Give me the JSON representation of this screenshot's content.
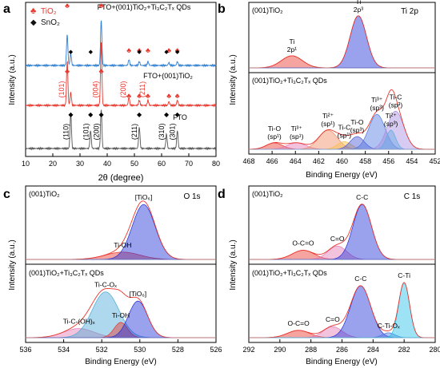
{
  "figure": {
    "panels": [
      {
        "letter": "a",
        "legend": [
          {
            "symbol": "♣",
            "label": "TiO₂",
            "color": "#e8362c"
          },
          {
            "symbol": "◆",
            "label": "SnO₂",
            "color": "#111111"
          }
        ],
        "xlabel": "2θ (degree)",
        "ylabel": "Intensity (a.u.)"
      },
      {
        "letter": "b",
        "title": "Ti 2p",
        "xlabel": "Binding Energy (eV)",
        "ylabel": "Intensity (a.u.)"
      },
      {
        "letter": "c",
        "title": "O 1s",
        "xlabel": "Binding Energy (eV)",
        "ylabel": "Intensity (a.u.)"
      },
      {
        "letter": "d",
        "title": "C 1s",
        "xlabel": "Binding Energy (eV)",
        "ylabel": "Intensity (a.u.)"
      }
    ]
  },
  "chart_data": [
    {
      "type": "line",
      "panel": "a",
      "xlabel": "2θ (degree)",
      "ylabel": "Intensity (a.u.)",
      "xlim": [
        10,
        80
      ],
      "xticks": [
        "10",
        "20",
        "30",
        "40",
        "50",
        "60",
        "70",
        "80"
      ],
      "y_ticks_shown": false,
      "series": [
        {
          "name": "FTO+(001)TiO₂+Ti₃C₂Tₓ QDs",
          "color": "#2f7fd1",
          "peaks": [
            {
              "x": 25.3,
              "h": 0.65
            },
            {
              "x": 26.6,
              "h": 0.25
            },
            {
              "x": 37.8,
              "h": 0.95
            },
            {
              "x": 48.0,
              "h": 0.12
            },
            {
              "x": 51.8,
              "h": 0.08
            },
            {
              "x": 55.0,
              "h": 0.08
            },
            {
              "x": 62.7,
              "h": 0.06
            },
            {
              "x": 65.8,
              "h": 0.08
            }
          ]
        },
        {
          "name": "FTO+(001)TiO₂",
          "color": "#e8362c",
          "peaks": [
            {
              "x": 25.3,
              "h": 0.7
            },
            {
              "x": 26.6,
              "h": 0.2
            },
            {
              "x": 37.8,
              "h": 1.0
            },
            {
              "x": 48.0,
              "h": 0.12
            },
            {
              "x": 51.8,
              "h": 0.08
            },
            {
              "x": 55.0,
              "h": 0.08
            },
            {
              "x": 62.7,
              "h": 0.06
            },
            {
              "x": 65.8,
              "h": 0.08
            }
          ]
        },
        {
          "name": "FTO",
          "color": "#555555",
          "peaks": [
            {
              "x": 26.6,
              "h": 0.5
            },
            {
              "x": 33.9,
              "h": 0.25
            },
            {
              "x": 37.8,
              "h": 0.55
            },
            {
              "x": 51.8,
              "h": 0.3
            },
            {
              "x": 61.8,
              "h": 0.2
            },
            {
              "x": 65.8,
              "h": 0.25
            }
          ]
        }
      ],
      "tio2_labels": [
        {
          "label": "(101)",
          "x": 25.3
        },
        {
          "label": "(004)",
          "x": 37.8
        },
        {
          "label": "(200)",
          "x": 48.0
        },
        {
          "label": "(211)",
          "x": 55.0
        }
      ],
      "sno2_labels": [
        {
          "label": "(110)",
          "x": 26.6
        },
        {
          "label": "(101)",
          "x": 33.9
        },
        {
          "label": "(200)",
          "x": 37.8
        },
        {
          "label": "(211)",
          "x": 51.8
        },
        {
          "label": "(310)",
          "x": 61.8
        },
        {
          "label": "(301)",
          "x": 65.8
        }
      ]
    },
    {
      "type": "line",
      "panel": "b",
      "title": "Ti 2p",
      "xlabel": "Binding Energy (eV)",
      "ylabel": "Intensity (a.u.)",
      "xlim": [
        468,
        452
      ],
      "xticks": [
        "468",
        "466",
        "464",
        "462",
        "460",
        "458",
        "456",
        "454",
        "452"
      ],
      "subplots": [
        {
          "label": "(001)TiO₂",
          "components": [
            {
              "name": "Ti 2p¹",
              "center": 464.3,
              "sigma": 0.9,
              "amp": 0.22,
              "fill": "#e8362c"
            },
            {
              "name": "Ti 2p³",
              "center": 458.6,
              "sigma": 0.7,
              "amp": 0.95,
              "fill": "#1f2fd6"
            }
          ]
        },
        {
          "label": "(001)TiO₂+Ti₃C₂Tₓ QDs",
          "components": [
            {
              "name": "Ti-O (sp¹)",
              "center": 465.8,
              "sigma": 0.7,
              "amp": 0.1,
              "fill": "#e8362c"
            },
            {
              "name": "Ti³⁺ (sp¹)",
              "center": 463.9,
              "sigma": 0.8,
              "amp": 0.1,
              "fill": "#e57ab4"
            },
            {
              "name": "Ti²⁺ (sp¹)",
              "center": 461.2,
              "sigma": 0.8,
              "amp": 0.3,
              "fill": "#f08a60"
            },
            {
              "name": "Ti-C (sp¹)",
              "center": 459.8,
              "sigma": 0.6,
              "amp": 0.12,
              "fill": "#f6c14b"
            },
            {
              "name": "Ti-O (sp³)",
              "center": 458.7,
              "sigma": 0.6,
              "amp": 0.2,
              "fill": "#4a57d6"
            },
            {
              "name": "Ti³⁺ (sp³)",
              "center": 457.0,
              "sigma": 0.7,
              "amp": 0.55,
              "fill": "#4f77e0"
            },
            {
              "name": "Ti²⁺ (sp³)",
              "center": 455.8,
              "sigma": 0.4,
              "amp": 0.3,
              "fill": "#27c1e8"
            },
            {
              "name": "Ti-C (sp³)",
              "center": 455.4,
              "sigma": 0.7,
              "amp": 0.6,
              "fill": "#a78ce0"
            }
          ]
        }
      ]
    },
    {
      "type": "line",
      "panel": "c",
      "title": "O 1s",
      "xlabel": "Binding Energy (eV)",
      "ylabel": "Intensity (a.u.)",
      "xlim": [
        536,
        526
      ],
      "xticks": [
        "536",
        "534",
        "532",
        "530",
        "528",
        "526"
      ],
      "subplots": [
        {
          "label": "(001)TiO₂",
          "components": [
            {
              "name": "Ti-OH",
              "center": 530.9,
              "sigma": 0.9,
              "amp": 0.12,
              "fill": "#e8362c"
            },
            {
              "name": "[TiO₆]",
              "center": 529.8,
              "sigma": 0.6,
              "amp": 0.9,
              "fill": "#1f2fd6"
            }
          ]
        },
        {
          "label": "(001)TiO₂+Ti₃C₂Tₓ QDs",
          "components": [
            {
              "name": "Ti-C-(OH)ₓ",
              "center": 533.2,
              "sigma": 0.8,
              "amp": 0.15,
              "fill": "#e57ab4"
            },
            {
              "name": "Ti-C-Oₓ",
              "center": 531.8,
              "sigma": 0.7,
              "amp": 0.75,
              "fill": "#4aa9d8"
            },
            {
              "name": "Ti-OH",
              "center": 531.0,
              "sigma": 0.35,
              "amp": 0.25,
              "fill": "#e8362c"
            },
            {
              "name": "[TiO₆]",
              "center": 530.1,
              "sigma": 0.5,
              "amp": 0.6,
              "fill": "#1f2fd6"
            }
          ]
        }
      ]
    },
    {
      "type": "line",
      "panel": "d",
      "title": "C 1s",
      "xlabel": "Binding Energy (eV)",
      "ylabel": "Intensity (a.u.)",
      "xlim": [
        292,
        280
      ],
      "xticks": [
        "292",
        "290",
        "288",
        "286",
        "284",
        "282",
        "280"
      ],
      "subplots": [
        {
          "label": "(001)TiO₂",
          "components": [
            {
              "name": "O-C=O",
              "center": 288.5,
              "sigma": 0.7,
              "amp": 0.15,
              "fill": "#e8362c"
            },
            {
              "name": "C=O",
              "center": 286.3,
              "sigma": 0.6,
              "amp": 0.22,
              "fill": "#e57ab4"
            },
            {
              "name": "C-C",
              "center": 284.7,
              "sigma": 0.6,
              "amp": 0.9,
              "fill": "#1f2fd6"
            }
          ]
        },
        {
          "label": "(001)TiO₂+Ti₃C₂Tₓ QDs",
          "components": [
            {
              "name": "O-C=O",
              "center": 288.8,
              "sigma": 0.7,
              "amp": 0.12,
              "fill": "#e8362c"
            },
            {
              "name": "C=O",
              "center": 286.6,
              "sigma": 0.6,
              "amp": 0.18,
              "fill": "#e57ab4"
            },
            {
              "name": "C-C",
              "center": 284.8,
              "sigma": 0.65,
              "amp": 0.85,
              "fill": "#1f2fd6"
            },
            {
              "name": "C-Ti-Oₓ",
              "center": 283.0,
              "sigma": 0.4,
              "amp": 0.08,
              "fill": "#4f77e0"
            },
            {
              "name": "C-Ti",
              "center": 282.0,
              "sigma": 0.35,
              "amp": 0.9,
              "fill": "#27c1e8"
            }
          ]
        }
      ]
    }
  ]
}
